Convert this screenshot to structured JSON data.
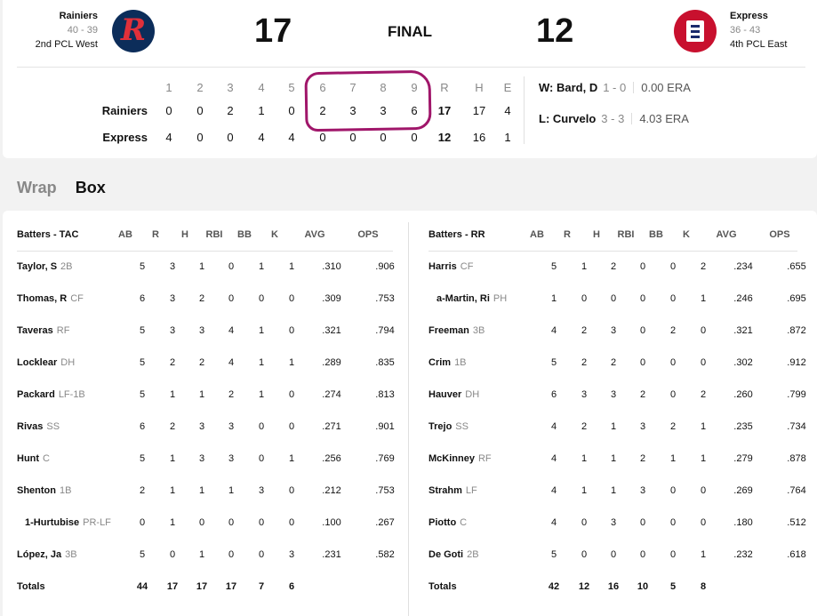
{
  "game": {
    "status": "FINAL",
    "home": {
      "name": "Rainiers",
      "record": "40 - 39",
      "standing": "2nd PCL West",
      "score": "17",
      "logo": "rainiers-logo"
    },
    "away": {
      "name": "Express",
      "record": "36 - 43",
      "standing": "4th PCL East",
      "score": "12",
      "logo": "express-logo"
    }
  },
  "linescore": {
    "innings": [
      "1",
      "2",
      "3",
      "4",
      "5",
      "6",
      "7",
      "8",
      "9"
    ],
    "totals_headers": [
      "R",
      "H",
      "E"
    ],
    "rows": [
      {
        "team": "Rainiers",
        "innings": [
          "0",
          "0",
          "2",
          "1",
          "0",
          "2",
          "3",
          "3",
          "6"
        ],
        "totals": [
          "17",
          "17",
          "4"
        ]
      },
      {
        "team": "Express",
        "innings": [
          "4",
          "0",
          "0",
          "4",
          "4",
          "0",
          "0",
          "0",
          "0"
        ],
        "totals": [
          "12",
          "16",
          "1"
        ]
      }
    ],
    "annotation_color": "#a0166a"
  },
  "pitchers": [
    {
      "label": "W: Bard, D",
      "record": "1 - 0",
      "era": "0.00 ERA"
    },
    {
      "label": "L: Curvelo",
      "record": "3 - 3",
      "era": "4.03 ERA"
    }
  ],
  "tabs": [
    {
      "label": "Wrap",
      "active": false
    },
    {
      "label": "Box",
      "active": true
    }
  ],
  "box": {
    "columns": [
      "AB",
      "R",
      "H",
      "RBI",
      "BB",
      "K",
      "AVG",
      "OPS"
    ],
    "teams": [
      {
        "title": "Batters - TAC",
        "batters": [
          {
            "name": "Taylor, S",
            "pos": "2B",
            "indent": false,
            "stats": [
              "5",
              "3",
              "1",
              "0",
              "1",
              "1",
              ".310",
              ".906"
            ]
          },
          {
            "name": "Thomas, R",
            "pos": "CF",
            "indent": false,
            "stats": [
              "6",
              "3",
              "2",
              "0",
              "0",
              "0",
              ".309",
              ".753"
            ]
          },
          {
            "name": "Taveras",
            "pos": "RF",
            "indent": false,
            "stats": [
              "5",
              "3",
              "3",
              "4",
              "1",
              "0",
              ".321",
              ".794"
            ]
          },
          {
            "name": "Locklear",
            "pos": "DH",
            "indent": false,
            "stats": [
              "5",
              "2",
              "2",
              "4",
              "1",
              "1",
              ".289",
              ".835"
            ]
          },
          {
            "name": "Packard",
            "pos": "LF-1B",
            "indent": false,
            "stats": [
              "5",
              "1",
              "1",
              "2",
              "1",
              "0",
              ".274",
              ".813"
            ]
          },
          {
            "name": "Rivas",
            "pos": "SS",
            "indent": false,
            "stats": [
              "6",
              "2",
              "3",
              "3",
              "0",
              "0",
              ".271",
              ".901"
            ]
          },
          {
            "name": "Hunt",
            "pos": "C",
            "indent": false,
            "stats": [
              "5",
              "1",
              "3",
              "3",
              "0",
              "1",
              ".256",
              ".769"
            ]
          },
          {
            "name": "Shenton",
            "pos": "1B",
            "indent": false,
            "stats": [
              "2",
              "1",
              "1",
              "1",
              "3",
              "0",
              ".212",
              ".753"
            ]
          },
          {
            "name": "1-Hurtubise",
            "pos": "PR-LF",
            "indent": true,
            "stats": [
              "0",
              "1",
              "0",
              "0",
              "0",
              "0",
              ".100",
              ".267"
            ]
          },
          {
            "name": "López, Ja",
            "pos": "3B",
            "indent": false,
            "stats": [
              "5",
              "0",
              "1",
              "0",
              "0",
              "3",
              ".231",
              ".582"
            ]
          }
        ],
        "totals_label": "Totals",
        "totals": [
          "44",
          "17",
          "17",
          "17",
          "7",
          "6"
        ]
      },
      {
        "title": "Batters - RR",
        "batters": [
          {
            "name": "Harris",
            "pos": "CF",
            "indent": false,
            "stats": [
              "5",
              "1",
              "2",
              "0",
              "0",
              "2",
              ".234",
              ".655"
            ]
          },
          {
            "name": "a-Martin, Ri",
            "pos": "PH",
            "indent": true,
            "stats": [
              "1",
              "0",
              "0",
              "0",
              "0",
              "1",
              ".246",
              ".695"
            ]
          },
          {
            "name": "Freeman",
            "pos": "3B",
            "indent": false,
            "stats": [
              "4",
              "2",
              "3",
              "0",
              "2",
              "0",
              ".321",
              ".872"
            ]
          },
          {
            "name": "Crim",
            "pos": "1B",
            "indent": false,
            "stats": [
              "5",
              "2",
              "2",
              "0",
              "0",
              "0",
              ".302",
              ".912"
            ]
          },
          {
            "name": "Hauver",
            "pos": "DH",
            "indent": false,
            "stats": [
              "6",
              "3",
              "3",
              "2",
              "0",
              "2",
              ".260",
              ".799"
            ]
          },
          {
            "name": "Trejo",
            "pos": "SS",
            "indent": false,
            "stats": [
              "4",
              "2",
              "1",
              "3",
              "2",
              "1",
              ".235",
              ".734"
            ]
          },
          {
            "name": "McKinney",
            "pos": "RF",
            "indent": false,
            "stats": [
              "4",
              "1",
              "1",
              "2",
              "1",
              "1",
              ".279",
              ".878"
            ]
          },
          {
            "name": "Strahm",
            "pos": "LF",
            "indent": false,
            "stats": [
              "4",
              "1",
              "1",
              "3",
              "0",
              "0",
              ".269",
              ".764"
            ]
          },
          {
            "name": "Piotto",
            "pos": "C",
            "indent": false,
            "stats": [
              "4",
              "0",
              "3",
              "0",
              "0",
              "0",
              ".180",
              ".512"
            ]
          },
          {
            "name": "De Goti",
            "pos": "2B",
            "indent": false,
            "stats": [
              "5",
              "0",
              "0",
              "0",
              "0",
              "1",
              ".232",
              ".618"
            ]
          }
        ],
        "totals_label": "Totals",
        "totals": [
          "42",
          "12",
          "16",
          "10",
          "5",
          "8"
        ]
      }
    ]
  }
}
